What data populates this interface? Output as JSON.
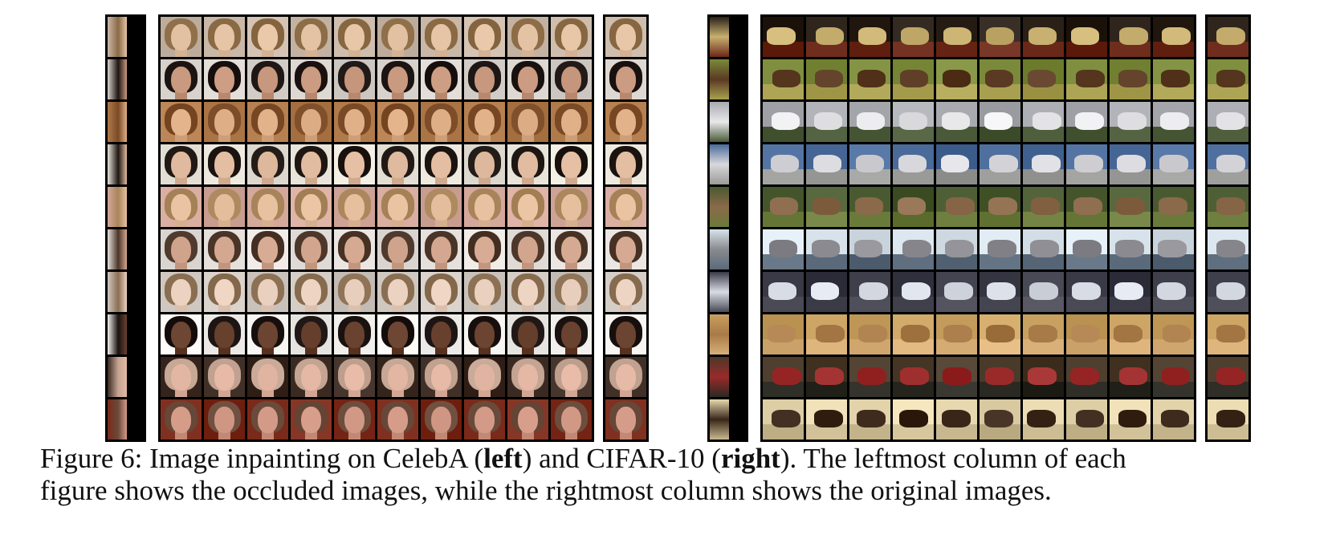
{
  "caption": {
    "line1_a": "Figure 6: Image inpainting on CelebA (",
    "line1_left": "left",
    "line1_b": ") and CIFAR-10 (",
    "line1_right": "right",
    "line1_c": "). The leftmost column of each",
    "line2": "figure shows the occluded images, while the rightmost column shows the original images."
  },
  "figure": {
    "samples_per_row": 10,
    "celeba_rows": [
      {
        "bg": "#c9b8a8",
        "hair": "#8a6a44",
        "skin": "#e6c4a6"
      },
      {
        "bg": "#d8d2cc",
        "hair": "#1c1412",
        "skin": "#c99a80"
      },
      {
        "bg": "#b07a4a",
        "hair": "#7a4a26",
        "skin": "#e0b088"
      },
      {
        "bg": "#e8e4da",
        "hair": "#1e1612",
        "skin": "#e2bca0"
      },
      {
        "bg": "#d4a89a",
        "hair": "#a8845a",
        "skin": "#e8c2a0"
      },
      {
        "bg": "#e6e0dc",
        "hair": "#4a3428",
        "skin": "#d4a890"
      },
      {
        "bg": "#cfc8c0",
        "hair": "#8a6e52",
        "skin": "#ecd2c0"
      },
      {
        "bg": "#f2f0ec",
        "hair": "#1a1210",
        "skin": "#6a4230"
      },
      {
        "bg": "#3a2a22",
        "hair": "#c4a492",
        "skin": "#e4b8a4"
      },
      {
        "bg": "#7a2a1a",
        "hair": "#6a4a3a",
        "skin": "#d49a88"
      }
    ],
    "cifar_rows": [
      {
        "bg": "#2a2018",
        "obj": "#c8b070",
        "ground": "#6a2818"
      },
      {
        "bg": "#7a8a3a",
        "obj": "#5a3a22",
        "ground": "#a8a050"
      },
      {
        "bg": "#a8aab0",
        "obj": "#e8e8ea",
        "ground": "#4a5a38"
      },
      {
        "bg": "#4a6a9a",
        "obj": "#d8d8dc",
        "ground": "#9a9a98"
      },
      {
        "bg": "#4a5a30",
        "obj": "#8a6a4a",
        "ground": "#6a7a3a"
      },
      {
        "bg": "#d8e2ea",
        "obj": "#8a8a90",
        "ground": "#5a6a7a"
      },
      {
        "bg": "#3a3a46",
        "obj": "#d8dce4",
        "ground": "#4a4a56"
      },
      {
        "bg": "#c8a060",
        "obj": "#a87a48",
        "ground": "#d8b078"
      },
      {
        "bg": "#4a3a2a",
        "obj": "#9a2a2a",
        "ground": "#2a2a22"
      },
      {
        "bg": "#e8d8b0",
        "obj": "#3a2618",
        "ground": "#c8b890"
      }
    ]
  }
}
